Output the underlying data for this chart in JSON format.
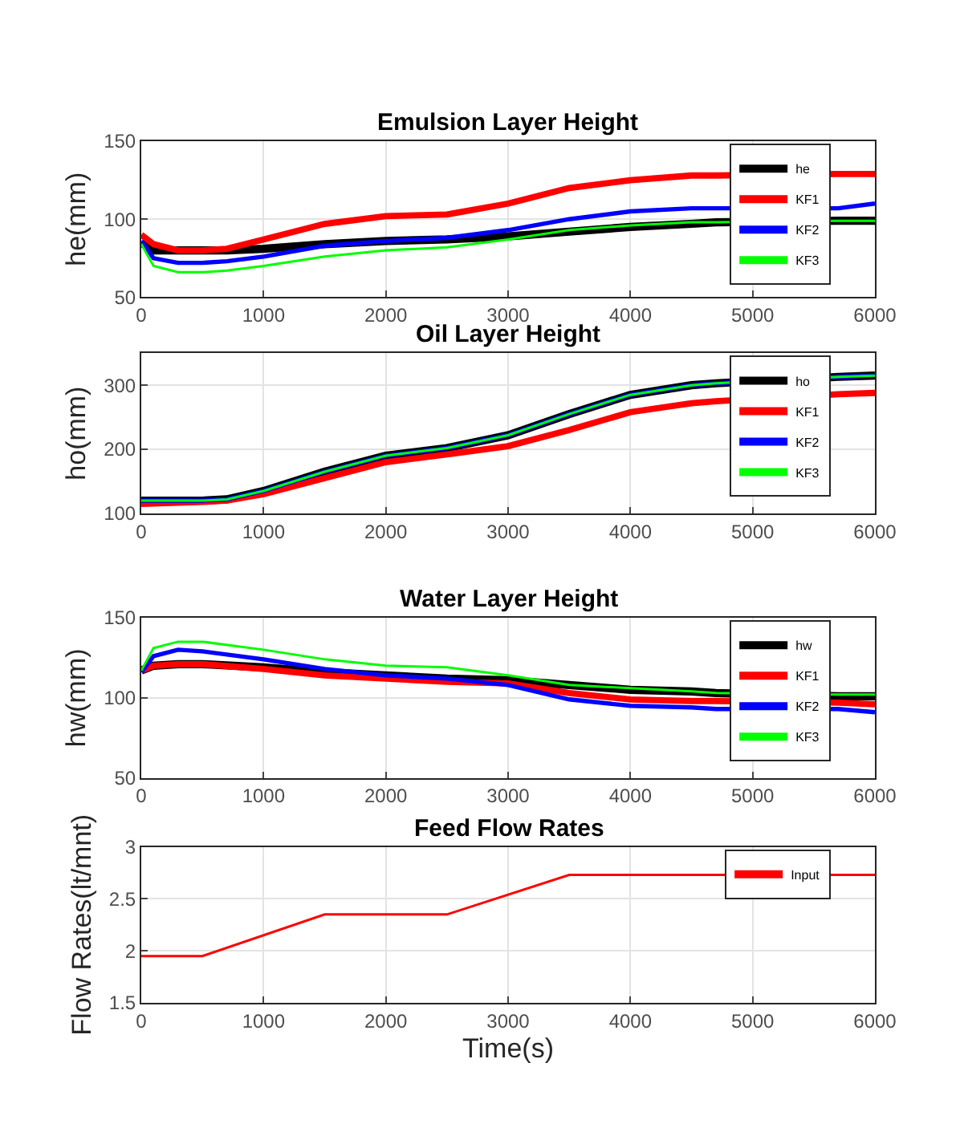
{
  "chart_data": [
    {
      "type": "line",
      "title": "Emulsion Layer Height",
      "ylabel": "he(mm)",
      "x": [
        0,
        100,
        300,
        500,
        700,
        1000,
        1500,
        2000,
        2500,
        3000,
        3500,
        4000,
        4500,
        4700,
        5700,
        6000
      ],
      "xlim": [
        0,
        6000
      ],
      "xticks": [
        0,
        1000,
        2000,
        3000,
        4000,
        5000,
        6000
      ],
      "ylim": [
        50,
        150
      ],
      "yticks": [
        50,
        100,
        150
      ],
      "grid": true,
      "legend": "top right",
      "series": [
        {
          "name": "he",
          "color": "#000000",
          "values": [
            85,
            80,
            80,
            80,
            80,
            81,
            84,
            86,
            87,
            89,
            92,
            95,
            97,
            98,
            99,
            99
          ]
        },
        {
          "name": "KF1",
          "color": "#ff0000",
          "values": [
            90,
            84,
            80,
            80,
            81,
            87,
            97,
            102,
            103,
            110,
            120,
            125,
            128,
            128,
            129,
            129
          ]
        },
        {
          "name": "KF2",
          "color": "#0000ff",
          "values": [
            86,
            75,
            72,
            72,
            73,
            76,
            83,
            86,
            88,
            93,
            100,
            105,
            107,
            107,
            107,
            110
          ]
        },
        {
          "name": "KF3",
          "color": "#00ff00",
          "values": [
            84,
            70,
            66,
            66,
            67,
            70,
            76,
            80,
            82,
            87,
            93,
            96,
            98,
            98,
            99,
            99
          ]
        }
      ]
    },
    {
      "type": "line",
      "title": "Oil Layer Height",
      "ylabel": "ho(mm)",
      "x": [
        0,
        500,
        700,
        1000,
        1500,
        2000,
        2500,
        3000,
        3500,
        4000,
        4500,
        4700,
        5700,
        6000
      ],
      "xlim": [
        0,
        6000
      ],
      "xticks": [
        0,
        1000,
        2000,
        3000,
        4000,
        5000,
        6000
      ],
      "ylim": [
        100,
        350
      ],
      "yticks": [
        100,
        200,
        300
      ],
      "grid": true,
      "legend": "top right",
      "series": [
        {
          "name": "ho",
          "color": "#000000",
          "values": [
            120,
            120,
            122,
            135,
            165,
            190,
            202,
            222,
            255,
            285,
            300,
            303,
            313,
            315
          ]
        },
        {
          "name": "KF1",
          "color": "#ff0000",
          "values": [
            115,
            118,
            120,
            130,
            155,
            180,
            192,
            205,
            230,
            258,
            272,
            275,
            286,
            288
          ]
        },
        {
          "name": "KF2",
          "color": "#0000ff",
          "values": [
            120,
            120,
            122,
            135,
            165,
            190,
            202,
            222,
            255,
            285,
            300,
            303,
            313,
            315
          ]
        },
        {
          "name": "KF3",
          "color": "#00ff00",
          "values": [
            120,
            120,
            122,
            135,
            165,
            190,
            202,
            222,
            255,
            285,
            300,
            303,
            313,
            315
          ]
        }
      ]
    },
    {
      "type": "line",
      "title": "Water Layer Height",
      "ylabel": "hw(mm)",
      "x": [
        0,
        100,
        300,
        500,
        1000,
        1500,
        2000,
        2500,
        3000,
        3500,
        4000,
        4500,
        4700,
        5700,
        6000
      ],
      "xlim": [
        0,
        6000
      ],
      "xticks": [
        0,
        1000,
        2000,
        3000,
        4000,
        5000,
        6000
      ],
      "ylim": [
        50,
        150
      ],
      "yticks": [
        50,
        100,
        150
      ],
      "grid": true,
      "legend": "top right",
      "series": [
        {
          "name": "hw",
          "color": "#000000",
          "values": [
            117,
            120,
            121,
            121,
            119,
            116,
            114,
            112,
            111,
            108,
            105,
            104,
            103,
            101,
            101
          ]
        },
        {
          "name": "KF1",
          "color": "#ff0000",
          "values": [
            117,
            120,
            121,
            121,
            118,
            114,
            112,
            110,
            109,
            103,
            99,
            98,
            98,
            97,
            96
          ]
        },
        {
          "name": "KF2",
          "color": "#0000ff",
          "values": [
            116,
            126,
            130,
            129,
            124,
            118,
            114,
            112,
            108,
            99,
            95,
            94,
            93,
            93,
            91
          ]
        },
        {
          "name": "KF3",
          "color": "#00ff00",
          "values": [
            117,
            131,
            135,
            135,
            130,
            124,
            120,
            119,
            114,
            108,
            106,
            104,
            103,
            102,
            102
          ]
        }
      ]
    },
    {
      "type": "line",
      "title": "Feed Flow Rates",
      "ylabel": "Flow Rates(lt/mnt)",
      "xlabel": "Time(s)",
      "x": [
        0,
        500,
        1500,
        2500,
        3500,
        6000
      ],
      "xlim": [
        0,
        6000
      ],
      "xticks": [
        0,
        1000,
        2000,
        3000,
        4000,
        5000,
        6000
      ],
      "ylim": [
        1.5,
        3
      ],
      "yticks": [
        1.5,
        2,
        2.5,
        3
      ],
      "grid": true,
      "legend": "top right",
      "series": [
        {
          "name": "Input",
          "color": "#ff0000",
          "values": [
            1.95,
            1.95,
            2.35,
            2.35,
            2.73,
            2.73
          ]
        }
      ]
    }
  ]
}
